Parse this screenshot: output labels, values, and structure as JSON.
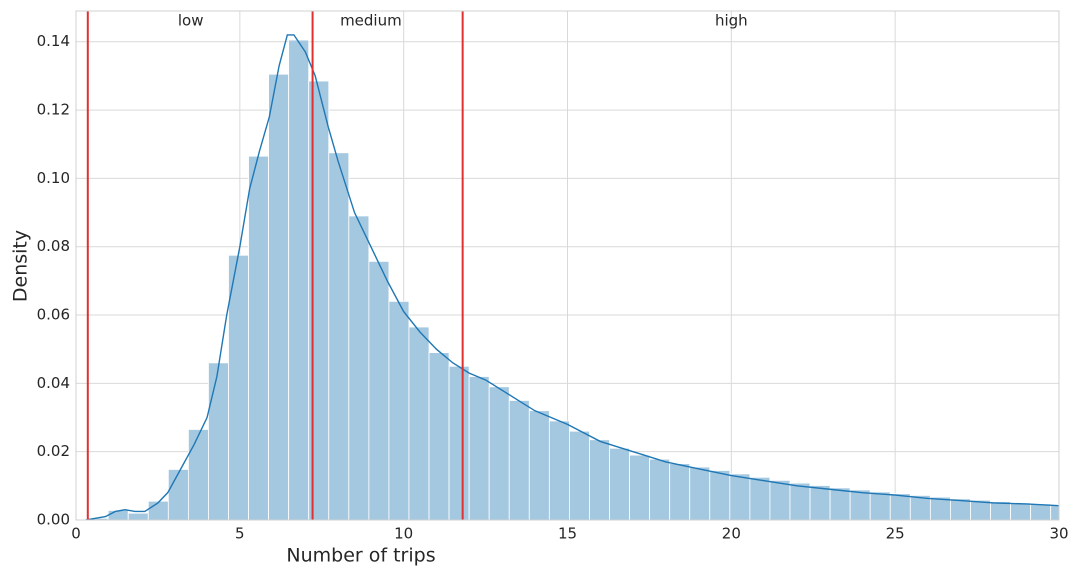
{
  "chart_data": {
    "type": "histogram",
    "xlabel": "Number of trips",
    "ylabel": "Density",
    "bins": [
      0.37,
      0.982,
      1.594,
      2.206,
      2.818,
      3.43,
      4.042,
      4.654,
      5.266,
      5.878,
      6.49,
      7.102,
      7.714,
      8.326,
      8.938,
      9.55,
      10.162,
      10.774,
      11.386,
      11.998,
      12.61,
      13.222,
      13.834,
      14.446,
      15.058,
      15.67,
      16.282,
      16.894,
      17.506,
      18.118,
      18.73,
      19.342,
      19.954,
      20.566,
      21.178,
      21.79,
      22.402,
      23.014,
      23.626,
      24.238,
      24.85,
      25.462,
      26.074,
      26.686,
      27.298,
      27.91,
      28.522,
      29.134,
      29.746,
      30.358
    ],
    "values": [
      0.0005,
      0.0028,
      0.002,
      0.0055,
      0.0148,
      0.0265,
      0.046,
      0.0775,
      0.1065,
      0.1305,
      0.1405,
      0.1285,
      0.1075,
      0.089,
      0.0757,
      0.064,
      0.0565,
      0.049,
      0.045,
      0.042,
      0.039,
      0.035,
      0.032,
      0.029,
      0.026,
      0.0235,
      0.021,
      0.019,
      0.0178,
      0.0165,
      0.0155,
      0.0145,
      0.0135,
      0.0125,
      0.0116,
      0.0108,
      0.0101,
      0.0094,
      0.0088,
      0.0082,
      0.0077,
      0.0072,
      0.0067,
      0.0062,
      0.0058,
      0.0054,
      0.005,
      0.0047,
      0.0044
    ],
    "color": "#a5c8e1",
    "kde": {
      "color": "#1f77b4",
      "x": [
        0.3,
        0.9,
        1.2,
        1.5,
        1.8,
        2.1,
        2.5,
        2.8,
        3.2,
        3.6,
        4.0,
        4.3,
        4.6,
        5.0,
        5.3,
        5.6,
        5.9,
        6.2,
        6.45,
        6.65,
        7.0,
        7.3,
        7.7,
        8.0,
        8.5,
        9.0,
        9.5,
        10,
        10.5,
        11,
        11.5,
        12,
        12.5,
        13,
        13.5,
        14,
        15,
        16,
        17,
        18,
        19,
        20,
        21,
        22,
        23,
        24,
        25,
        26,
        27,
        28,
        29,
        30
      ],
      "values": [
        0,
        0.001,
        0.0025,
        0.003,
        0.0025,
        0.0025,
        0.005,
        0.008,
        0.015,
        0.022,
        0.03,
        0.042,
        0.06,
        0.08,
        0.097,
        0.108,
        0.118,
        0.133,
        0.142,
        0.142,
        0.137,
        0.13,
        0.115,
        0.105,
        0.09,
        0.08,
        0.07,
        0.061,
        0.055,
        0.05,
        0.046,
        0.043,
        0.041,
        0.038,
        0.035,
        0.032,
        0.028,
        0.023,
        0.02,
        0.017,
        0.015,
        0.013,
        0.0115,
        0.01,
        0.009,
        0.008,
        0.0073,
        0.0063,
        0.0057,
        0.005,
        0.0047,
        0.0042
      ]
    },
    "vlines": {
      "color": "#e03030",
      "values": [
        0.36,
        7.22,
        11.8
      ]
    },
    "annotations": [
      {
        "text": "low",
        "x": 3.5,
        "y": 0.146
      },
      {
        "text": "medium",
        "x": 9.0,
        "y": 0.146
      },
      {
        "text": "high",
        "x": 20.0,
        "y": 0.146
      }
    ],
    "xlim": [
      0,
      30
    ],
    "xticks": [
      0,
      5,
      10,
      15,
      20,
      25,
      30
    ],
    "ylim": [
      0,
      0.149
    ],
    "yticks": [
      {
        "value": 0,
        "label": "0.00"
      },
      {
        "value": 0.02,
        "label": "0.02"
      },
      {
        "value": 0.04,
        "label": "0.04"
      },
      {
        "value": 0.06,
        "label": "0.06"
      },
      {
        "value": 0.08,
        "label": "0.08"
      },
      {
        "value": 0.1,
        "label": "0.10"
      },
      {
        "value": 0.12,
        "label": "0.12"
      },
      {
        "value": 0.14,
        "label": "0.14"
      }
    ],
    "grid": true
  }
}
